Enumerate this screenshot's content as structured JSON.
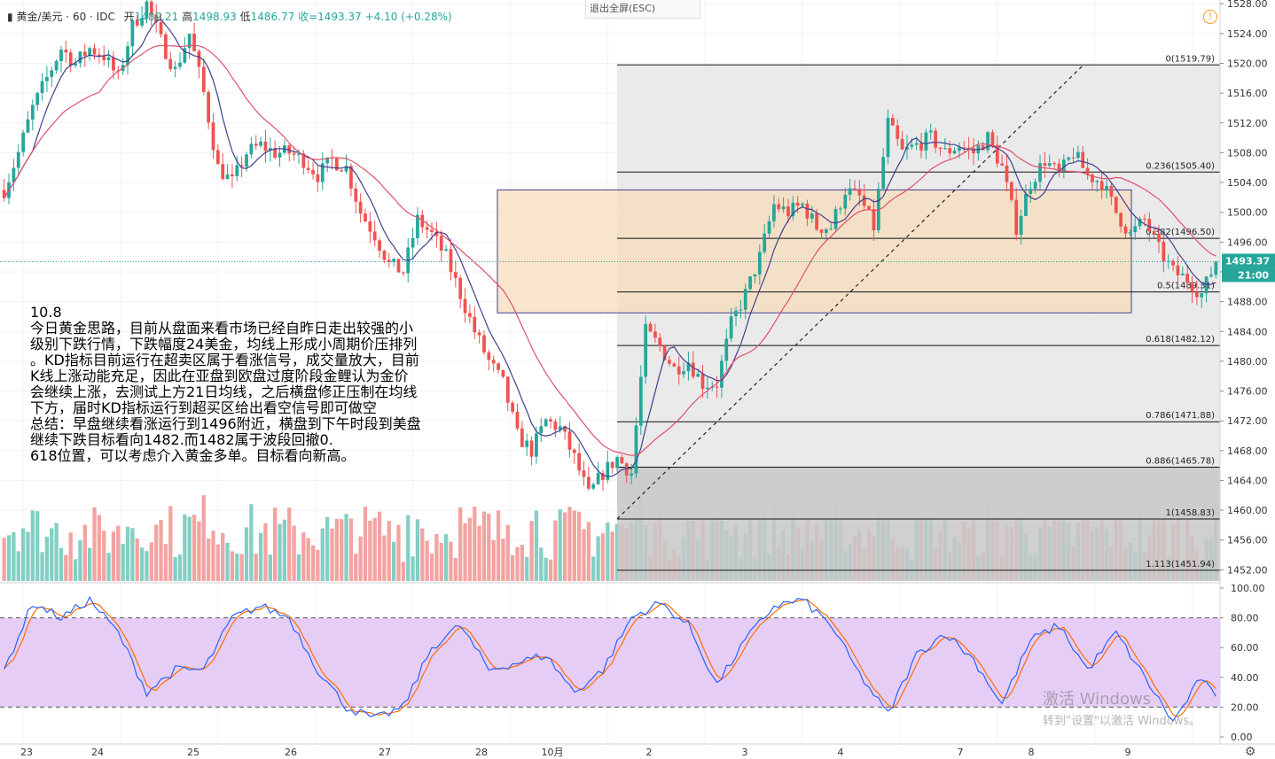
{
  "header": {
    "symbol": "黄金/美元",
    "interval": "60",
    "source": "IDC",
    "open": "1489.21",
    "high": "1498.93",
    "low": "1486.77",
    "close_label": "收=1493.37",
    "change": "+4.10 (+0.28%)"
  },
  "exit_fullscreen": "退出全屏(ESC)",
  "price_tag": "1493.37",
  "time_tag": "21:00",
  "note": {
    "date": "10.8",
    "lines": [
      "今日黄金思路，目前从盘面来看市场已经自昨日走出较强的小",
      "级别下跌行情，下跌幅度24美金，均线上形成小周期价压排列",
      "。KD指标目前运行在超卖区属于看涨信号，成交量放大，目前",
      "K线上涨动能充足，因此在亚盘到欧盘过度阶段金鲤认为金价",
      "会继续上涨，去测试上方21日均线，之后横盘修正压制在均线",
      "下方，届时KD指标运行到超买区给出看空信号即可做空",
      "总结：早盘继续看涨运行到1496附近，横盘到下午时段到美盘",
      "继续下跌目标看向1482.而1482属于波段回撤0.",
      "618位置，可以考虑介入黄金多单。目标看向新高。"
    ]
  },
  "watermark": {
    "line1": "激活 Windows",
    "line2": "转到\"设置\"以激活 Windows。"
  },
  "colors": {
    "up": "#26a69a",
    "down": "#ef5350",
    "ma_fast": "#3f3f8f",
    "ma_slow": "#e0506e",
    "k_line": "#2962ff",
    "d_line": "#ff6d00",
    "kd_band": "#e3c8f5",
    "price_tag": "#26a69a",
    "zone_fill": "#f8dcb8"
  },
  "chart_data": [
    {
      "type": "candlestick",
      "title": "黄金/美元 · 60 · IDC",
      "x_tick_labels": [
        "23",
        "24",
        "25",
        "26",
        "27",
        "28",
        "10月",
        "2",
        "3",
        "4",
        "7",
        "8",
        "9"
      ],
      "y_tick_labels": [
        "1452.00",
        "1456.00",
        "1460.00",
        "1464.00",
        "1468.00",
        "1472.00",
        "1476.00",
        "1480.00",
        "1484.00",
        "1488.00",
        "1492.00",
        "1496.00",
        "1500.00",
        "1504.00",
        "1508.00",
        "1512.00",
        "1516.00",
        "1520.00",
        "1524.00",
        "1528.00"
      ],
      "ylim": [
        1450.5,
        1528.5
      ],
      "last_price": 1493.37,
      "close_path": [
        [
          0,
          1503
        ],
        [
          3,
          1508
        ],
        [
          6,
          1514
        ],
        [
          9,
          1518
        ],
        [
          12,
          1522
        ],
        [
          15,
          1520
        ],
        [
          18,
          1522
        ],
        [
          21,
          1521
        ],
        [
          24,
          1518
        ],
        [
          27,
          1525
        ],
        [
          30,
          1528
        ],
        [
          33,
          1523
        ],
        [
          36,
          1519
        ],
        [
          39,
          1524
        ],
        [
          42,
          1516
        ],
        [
          45,
          1506
        ],
        [
          48,
          1504
        ],
        [
          51,
          1508
        ],
        [
          54,
          1509
        ],
        [
          57,
          1508
        ],
        [
          60,
          1508
        ],
        [
          63,
          1507
        ],
        [
          66,
          1505
        ],
        [
          69,
          1507
        ],
        [
          72,
          1506
        ],
        [
          75,
          1500
        ],
        [
          78,
          1497
        ],
        [
          81,
          1493
        ],
        [
          84,
          1492
        ],
        [
          87,
          1499
        ],
        [
          90,
          1497
        ],
        [
          93,
          1494
        ],
        [
          96,
          1489
        ],
        [
          99,
          1484
        ],
        [
          102,
          1480
        ],
        [
          105,
          1477
        ],
        [
          108,
          1470
        ],
        [
          111,
          1468
        ],
        [
          114,
          1472
        ],
        [
          117,
          1471
        ],
        [
          120,
          1467
        ],
        [
          123,
          1462
        ],
        [
          126,
          1465
        ],
        [
          129,
          1467
        ],
        [
          132,
          1465
        ],
        [
          135,
          1484
        ],
        [
          138,
          1482
        ],
        [
          141,
          1479
        ],
        [
          144,
          1480
        ],
        [
          147,
          1477
        ],
        [
          150,
          1477
        ],
        [
          153,
          1485
        ],
        [
          156,
          1489
        ],
        [
          159,
          1494
        ],
        [
          162,
          1501
        ],
        [
          165,
          1500
        ],
        [
          168,
          1501
        ],
        [
          171,
          1498
        ],
        [
          174,
          1498
        ],
        [
          177,
          1503
        ],
        [
          180,
          1502
        ],
        [
          183,
          1498
        ],
        [
          186,
          1512
        ],
        [
          189,
          1508
        ],
        [
          192,
          1509
        ],
        [
          195,
          1510
        ],
        [
          198,
          1508
        ],
        [
          201,
          1509
        ],
        [
          204,
          1508
        ],
        [
          207,
          1510
        ],
        [
          210,
          1506
        ],
        [
          213,
          1498
        ],
        [
          216,
          1504
        ],
        [
          219,
          1507
        ],
        [
          222,
          1505
        ],
        [
          225,
          1508
        ],
        [
          228,
          1505
        ],
        [
          231,
          1504
        ],
        [
          234,
          1500
        ],
        [
          237,
          1497
        ],
        [
          240,
          1499
        ],
        [
          243,
          1495
        ],
        [
          246,
          1492
        ],
        [
          249,
          1491
        ],
        [
          252,
          1489
        ],
        [
          255,
          1493.37
        ]
      ],
      "series": [
        {
          "name": "",
          "role": "ma-fast"
        },
        {
          "name": "",
          "role": "ma-slow"
        }
      ],
      "fibonacci": [
        {
          "level": "0",
          "price": 1519.79
        },
        {
          "level": "0.236",
          "price": 1505.4
        },
        {
          "level": "0.382",
          "price": 1496.5
        },
        {
          "level": "0.5",
          "price": 1489.31
        },
        {
          "level": "0.618",
          "price": 1482.12
        },
        {
          "level": "0.786",
          "price": 1471.88
        },
        {
          "level": "0.886",
          "price": 1465.78
        },
        {
          "level": "1",
          "price": 1458.83
        },
        {
          "level": "1.113",
          "price": 1451.94
        }
      ],
      "zone": {
        "price_top": 1503.0,
        "price_bottom": 1486.5
      },
      "grid": true
    },
    {
      "type": "line",
      "title": "KD",
      "y_tick_labels": [
        "0.00",
        "20.00",
        "40.00",
        "60.00",
        "80.00",
        "100.00"
      ],
      "ylim": [
        0,
        100
      ],
      "band": [
        20,
        80
      ],
      "series": [
        {
          "name": "",
          "role": "k"
        },
        {
          "name": "",
          "role": "d"
        }
      ],
      "k_path": [
        [
          0,
          45
        ],
        [
          6,
          90
        ],
        [
          12,
          80
        ],
        [
          18,
          92
        ],
        [
          24,
          70
        ],
        [
          30,
          30
        ],
        [
          36,
          45
        ],
        [
          42,
          45
        ],
        [
          48,
          80
        ],
        [
          54,
          88
        ],
        [
          60,
          80
        ],
        [
          66,
          45
        ],
        [
          72,
          20
        ],
        [
          78,
          12
        ],
        [
          84,
          20
        ],
        [
          90,
          60
        ],
        [
          96,
          75
        ],
        [
          102,
          45
        ],
        [
          108,
          50
        ],
        [
          114,
          55
        ],
        [
          120,
          30
        ],
        [
          126,
          45
        ],
        [
          132,
          80
        ],
        [
          138,
          90
        ],
        [
          144,
          75
        ],
        [
          150,
          35
        ],
        [
          156,
          65
        ],
        [
          162,
          88
        ],
        [
          168,
          92
        ],
        [
          174,
          75
        ],
        [
          180,
          42
        ],
        [
          186,
          15
        ],
        [
          192,
          55
        ],
        [
          198,
          70
        ],
        [
          204,
          52
        ],
        [
          210,
          22
        ],
        [
          216,
          65
        ],
        [
          222,
          75
        ],
        [
          228,
          45
        ],
        [
          234,
          70
        ],
        [
          240,
          40
        ],
        [
          246,
          10
        ],
        [
          252,
          40
        ],
        [
          255,
          25
        ]
      ]
    }
  ]
}
